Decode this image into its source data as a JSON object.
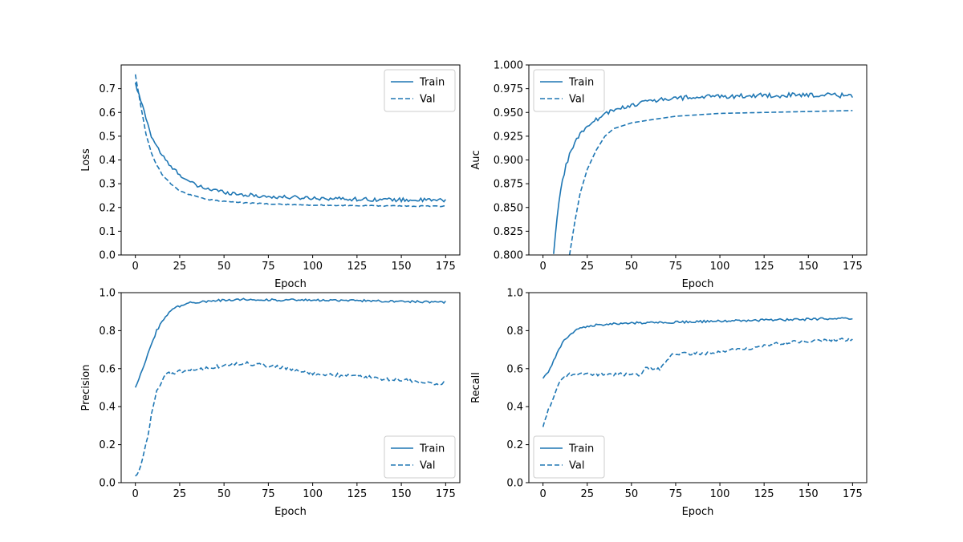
{
  "chart_data": [
    {
      "id": "loss",
      "type": "line",
      "title": "",
      "xlabel": "Epoch",
      "ylabel": "Loss",
      "xlim": [
        -8,
        183
      ],
      "ylim": [
        0.0,
        0.8
      ],
      "xticks": [
        0,
        25,
        50,
        75,
        100,
        125,
        150,
        175
      ],
      "yticks": [
        0.0,
        0.1,
        0.2,
        0.3,
        0.4,
        0.5,
        0.6,
        0.7
      ],
      "ytick_labels": [
        "0.0",
        "0.1",
        "0.2",
        "0.3",
        "0.4",
        "0.5",
        "0.6",
        "0.7"
      ],
      "legend_position": "top-right",
      "color": "#1f77b4",
      "series": [
        {
          "name": "Train",
          "style": "solid",
          "x": [
            0,
            3,
            6,
            9,
            12,
            15,
            20,
            25,
            30,
            35,
            40,
            50,
            60,
            75,
            100,
            125,
            150,
            175
          ],
          "values": [
            0.72,
            0.65,
            0.58,
            0.5,
            0.46,
            0.42,
            0.37,
            0.34,
            0.31,
            0.29,
            0.28,
            0.265,
            0.255,
            0.245,
            0.24,
            0.235,
            0.232,
            0.23
          ],
          "noise": 0.008
        },
        {
          "name": "Val",
          "style": "dashed",
          "x": [
            0,
            3,
            6,
            9,
            12,
            15,
            20,
            25,
            30,
            35,
            40,
            50,
            60,
            75,
            100,
            125,
            150,
            175
          ],
          "values": [
            0.76,
            0.63,
            0.51,
            0.43,
            0.38,
            0.34,
            0.3,
            0.27,
            0.255,
            0.245,
            0.235,
            0.225,
            0.22,
            0.215,
            0.21,
            0.208,
            0.206,
            0.205
          ],
          "noise": 0.002
        }
      ]
    },
    {
      "id": "auc",
      "type": "line",
      "title": "",
      "xlabel": "Epoch",
      "ylabel": "Auc",
      "xlim": [
        -8,
        183
      ],
      "ylim": [
        0.8,
        1.0
      ],
      "xticks": [
        0,
        25,
        50,
        75,
        100,
        125,
        150,
        175
      ],
      "yticks": [
        0.8,
        0.825,
        0.85,
        0.875,
        0.9,
        0.925,
        0.95,
        0.975,
        1.0
      ],
      "ytick_labels": [
        "0.800",
        "0.825",
        "0.850",
        "0.875",
        "0.900",
        "0.925",
        "0.950",
        "0.975",
        "1.000"
      ],
      "legend_position": "top-left",
      "color": "#1f77b4",
      "series": [
        {
          "name": "Train",
          "style": "solid",
          "x": [
            6,
            8,
            10,
            13,
            16,
            20,
            25,
            30,
            35,
            40,
            50,
            60,
            75,
            100,
            125,
            150,
            175
          ],
          "values": [
            0.8,
            0.84,
            0.87,
            0.895,
            0.91,
            0.925,
            0.935,
            0.942,
            0.948,
            0.952,
            0.958,
            0.962,
            0.965,
            0.967,
            0.968,
            0.968,
            0.968
          ],
          "noise": 0.0025
        },
        {
          "name": "Val",
          "style": "dashed",
          "x": [
            15,
            18,
            21,
            25,
            30,
            35,
            40,
            50,
            60,
            75,
            100,
            125,
            150,
            175
          ],
          "values": [
            0.8,
            0.835,
            0.865,
            0.89,
            0.91,
            0.925,
            0.933,
            0.939,
            0.942,
            0.946,
            0.949,
            0.95,
            0.951,
            0.952
          ],
          "noise": 0.0
        }
      ]
    },
    {
      "id": "precision",
      "type": "line",
      "title": "",
      "xlabel": "Epoch",
      "ylabel": "Precision",
      "xlim": [
        -8,
        183
      ],
      "ylim": [
        0.0,
        1.0
      ],
      "xticks": [
        0,
        25,
        50,
        75,
        100,
        125,
        150,
        175
      ],
      "yticks": [
        0.0,
        0.2,
        0.4,
        0.6,
        0.8,
        1.0
      ],
      "ytick_labels": [
        "0.0",
        "0.2",
        "0.4",
        "0.6",
        "0.8",
        "1.0"
      ],
      "legend_position": "bottom-right",
      "color": "#1f77b4",
      "series": [
        {
          "name": "Train",
          "style": "solid",
          "x": [
            0,
            4,
            8,
            12,
            16,
            20,
            25,
            30,
            40,
            50,
            60,
            75,
            100,
            125,
            150,
            175
          ],
          "values": [
            0.5,
            0.6,
            0.7,
            0.8,
            0.86,
            0.91,
            0.93,
            0.945,
            0.955,
            0.96,
            0.965,
            0.962,
            0.96,
            0.958,
            0.955,
            0.95
          ],
          "noise": 0.006
        },
        {
          "name": "Val",
          "style": "dashed",
          "x": [
            0,
            3,
            6,
            9,
            12,
            15,
            18,
            22,
            30,
            40,
            50,
            60,
            70,
            80,
            90,
            100,
            125,
            150,
            175
          ],
          "values": [
            0.04,
            0.08,
            0.2,
            0.35,
            0.48,
            0.54,
            0.57,
            0.58,
            0.595,
            0.605,
            0.615,
            0.63,
            0.62,
            0.61,
            0.59,
            0.575,
            0.56,
            0.54,
            0.52
          ],
          "noise": 0.01
        }
      ]
    },
    {
      "id": "recall",
      "type": "line",
      "title": "",
      "xlabel": "Epoch",
      "ylabel": "Recall",
      "xlim": [
        -8,
        183
      ],
      "ylim": [
        0.0,
        1.0
      ],
      "xticks": [
        0,
        25,
        50,
        75,
        100,
        125,
        150,
        175
      ],
      "yticks": [
        0.0,
        0.2,
        0.4,
        0.6,
        0.8,
        1.0
      ],
      "ytick_labels": [
        "0.0",
        "0.2",
        "0.4",
        "0.6",
        "0.8",
        "1.0"
      ],
      "legend_position": "bottom-left",
      "color": "#1f77b4",
      "series": [
        {
          "name": "Train",
          "style": "solid",
          "x": [
            0,
            3,
            6,
            9,
            12,
            15,
            20,
            25,
            30,
            40,
            50,
            75,
            100,
            125,
            150,
            175
          ],
          "values": [
            0.55,
            0.58,
            0.64,
            0.7,
            0.75,
            0.78,
            0.81,
            0.825,
            0.83,
            0.835,
            0.84,
            0.845,
            0.85,
            0.855,
            0.86,
            0.865
          ],
          "noise": 0.006
        },
        {
          "name": "Val",
          "style": "dashed",
          "x": [
            0,
            3,
            6,
            9,
            12,
            15,
            20,
            55,
            58,
            66,
            70,
            73,
            95,
            100,
            110,
            120,
            130,
            140,
            150,
            160,
            175
          ],
          "values": [
            0.3,
            0.38,
            0.45,
            0.52,
            0.555,
            0.57,
            0.57,
            0.57,
            0.6,
            0.6,
            0.64,
            0.68,
            0.68,
            0.69,
            0.7,
            0.71,
            0.73,
            0.74,
            0.745,
            0.75,
            0.755
          ],
          "noise": 0.008
        }
      ]
    }
  ]
}
